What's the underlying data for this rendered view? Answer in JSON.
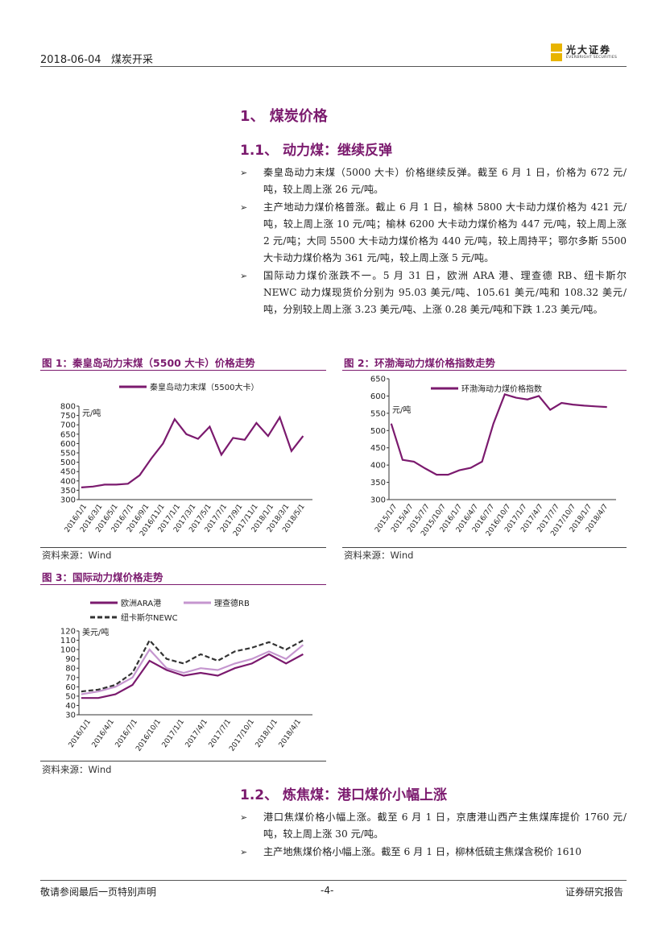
{
  "header": {
    "date": "2018-06-04",
    "category": "煤炭开采",
    "logo_cn": "光大证券",
    "logo_en": "EVERBRIGHT SECURITIES"
  },
  "section1": {
    "title": "1、 煤炭价格",
    "sub1_title": "1.1、 动力煤：继续反弹",
    "bullets": [
      "秦皇岛动力末煤（5000 大卡）价格继续反弹。截至 6 月 1 日，价格为 672 元/吨，较上周上涨 26 元/吨。",
      "主产地动力煤价格普涨。截止 6 月 1 日，榆林 5800 大卡动力煤价格为 421 元/吨，较上周上涨 10 元/吨；榆林 6200 大卡动力煤价格为 447 元/吨，较上周上涨 2 元/吨；大同 5500 大卡动力煤价格为 440 元/吨，较上周持平；鄂尔多斯 5500 大卡动力煤价格为 361 元/吨，较上周上涨 5 元/吨。",
      "国际动力煤价涨跌不一。5 月 31 日，欧洲 ARA 港、理查德 RB、纽卡斯尔 NEWC 动力煤现货价分别为 95.03 美元/吨、105.61 美元/吨和 108.32 美元/吨，分别较上周上涨 3.23 美元/吨、上涨 0.28 美元/吨和下跌 1.23 美元/吨。"
    ],
    "sub2_title": "1.2、 炼焦煤：港口煤价小幅上涨",
    "bullets2": [
      "港口焦煤价格小幅上涨。截至 6 月 1 日，京唐港山西产主焦煤库提价 1760 元/吨，较上周上涨 30 元/吨。",
      "主产地焦煤价格小幅上涨。截至 6 月 1 日，柳林低硫主焦煤含税价 1610"
    ]
  },
  "figures": {
    "fig1_title": "图 1：秦皇岛动力末煤（5500 大卡）价格走势",
    "fig2_title": "图 2：环渤海动力煤价格指数走势",
    "fig3_title": "图 3：国际动力煤价格走势",
    "source": "资料来源：Wind"
  },
  "chart_data": [
    {
      "type": "line",
      "title": "图 1：秦皇岛动力末煤（5500 大卡）价格走势",
      "ylabel": "元/吨",
      "ylim": [
        300,
        800
      ],
      "yticks": [
        "800",
        "750",
        "700",
        "650",
        "600",
        "550",
        "500",
        "450",
        "400",
        "350",
        "300"
      ],
      "x_ticks": [
        "2016/1/1",
        "2016/3/1",
        "2016/5/1",
        "2016/7/1",
        "2016/9/1",
        "2016/11/1",
        "2017/1/1",
        "2017/3/1",
        "2017/5/1",
        "2017/7/1",
        "2017/9/1",
        "2017/11/1",
        "2018/1/1",
        "2018/3/1",
        "2018/5/1"
      ],
      "series": [
        {
          "name": "秦皇岛动力末煤（5500大卡）",
          "color": "#7b1a6e",
          "values": [
            365,
            370,
            380,
            380,
            385,
            430,
            520,
            600,
            730,
            650,
            625,
            690,
            540,
            630,
            620,
            710,
            640,
            740,
            560,
            640
          ]
        }
      ]
    },
    {
      "type": "line",
      "title": "图 2：环渤海动力煤价格指数走势",
      "ylabel": "元/吨",
      "ylim": [
        300,
        650
      ],
      "yticks": [
        "650",
        "600",
        "550",
        "500",
        "450",
        "400",
        "350",
        "300"
      ],
      "x_ticks": [
        "2015/1/7",
        "2015/4/7",
        "2015/7/7",
        "2015/10/7",
        "2016/1/7",
        "2016/4/7",
        "2016/7/7",
        "2016/10/7",
        "2017/1/7",
        "2017/4/7",
        "2017/7/7",
        "2017/10/7",
        "2018/1/7",
        "2018/4/7"
      ],
      "series": [
        {
          "name": "环渤海动力煤价格指数",
          "color": "#7b1a6e",
          "values": [
            520,
            415,
            410,
            390,
            372,
            372,
            385,
            392,
            410,
            520,
            605,
            595,
            590,
            600,
            560,
            580,
            575,
            572,
            570,
            568
          ]
        }
      ]
    },
    {
      "type": "line",
      "title": "图 3：国际动力煤价格走势",
      "ylabel": "美元/吨",
      "ylim": [
        30,
        120
      ],
      "yticks": [
        "120",
        "110",
        "100",
        "90",
        "80",
        "70",
        "60",
        "50",
        "40",
        "30"
      ],
      "x_ticks": [
        "2016/1/1",
        "2016/4/1",
        "2016/7/1",
        "2016/10/1",
        "2017/1/1",
        "2017/4/1",
        "2017/7/1",
        "2017/10/1",
        "2018/1/1",
        "2018/4/1"
      ],
      "series": [
        {
          "name": "欧洲ARA港",
          "color": "#7b1a6e",
          "values": [
            48,
            48,
            52,
            62,
            88,
            78,
            72,
            75,
            72,
            80,
            85,
            95,
            85,
            95
          ]
        },
        {
          "name": "理查德RB",
          "color": "#c596cf",
          "values": [
            52,
            55,
            60,
            70,
            100,
            80,
            75,
            80,
            78,
            85,
            90,
            98,
            90,
            105
          ]
        },
        {
          "name": "纽卡斯尔NEWC",
          "color": "#333333",
          "values": [
            55,
            57,
            62,
            75,
            110,
            90,
            85,
            95,
            88,
            98,
            102,
            108,
            100,
            110
          ]
        }
      ]
    }
  ],
  "footer": {
    "left": "敬请参阅最后一页特别声明",
    "page": "-4-",
    "right": "证券研究报告"
  }
}
